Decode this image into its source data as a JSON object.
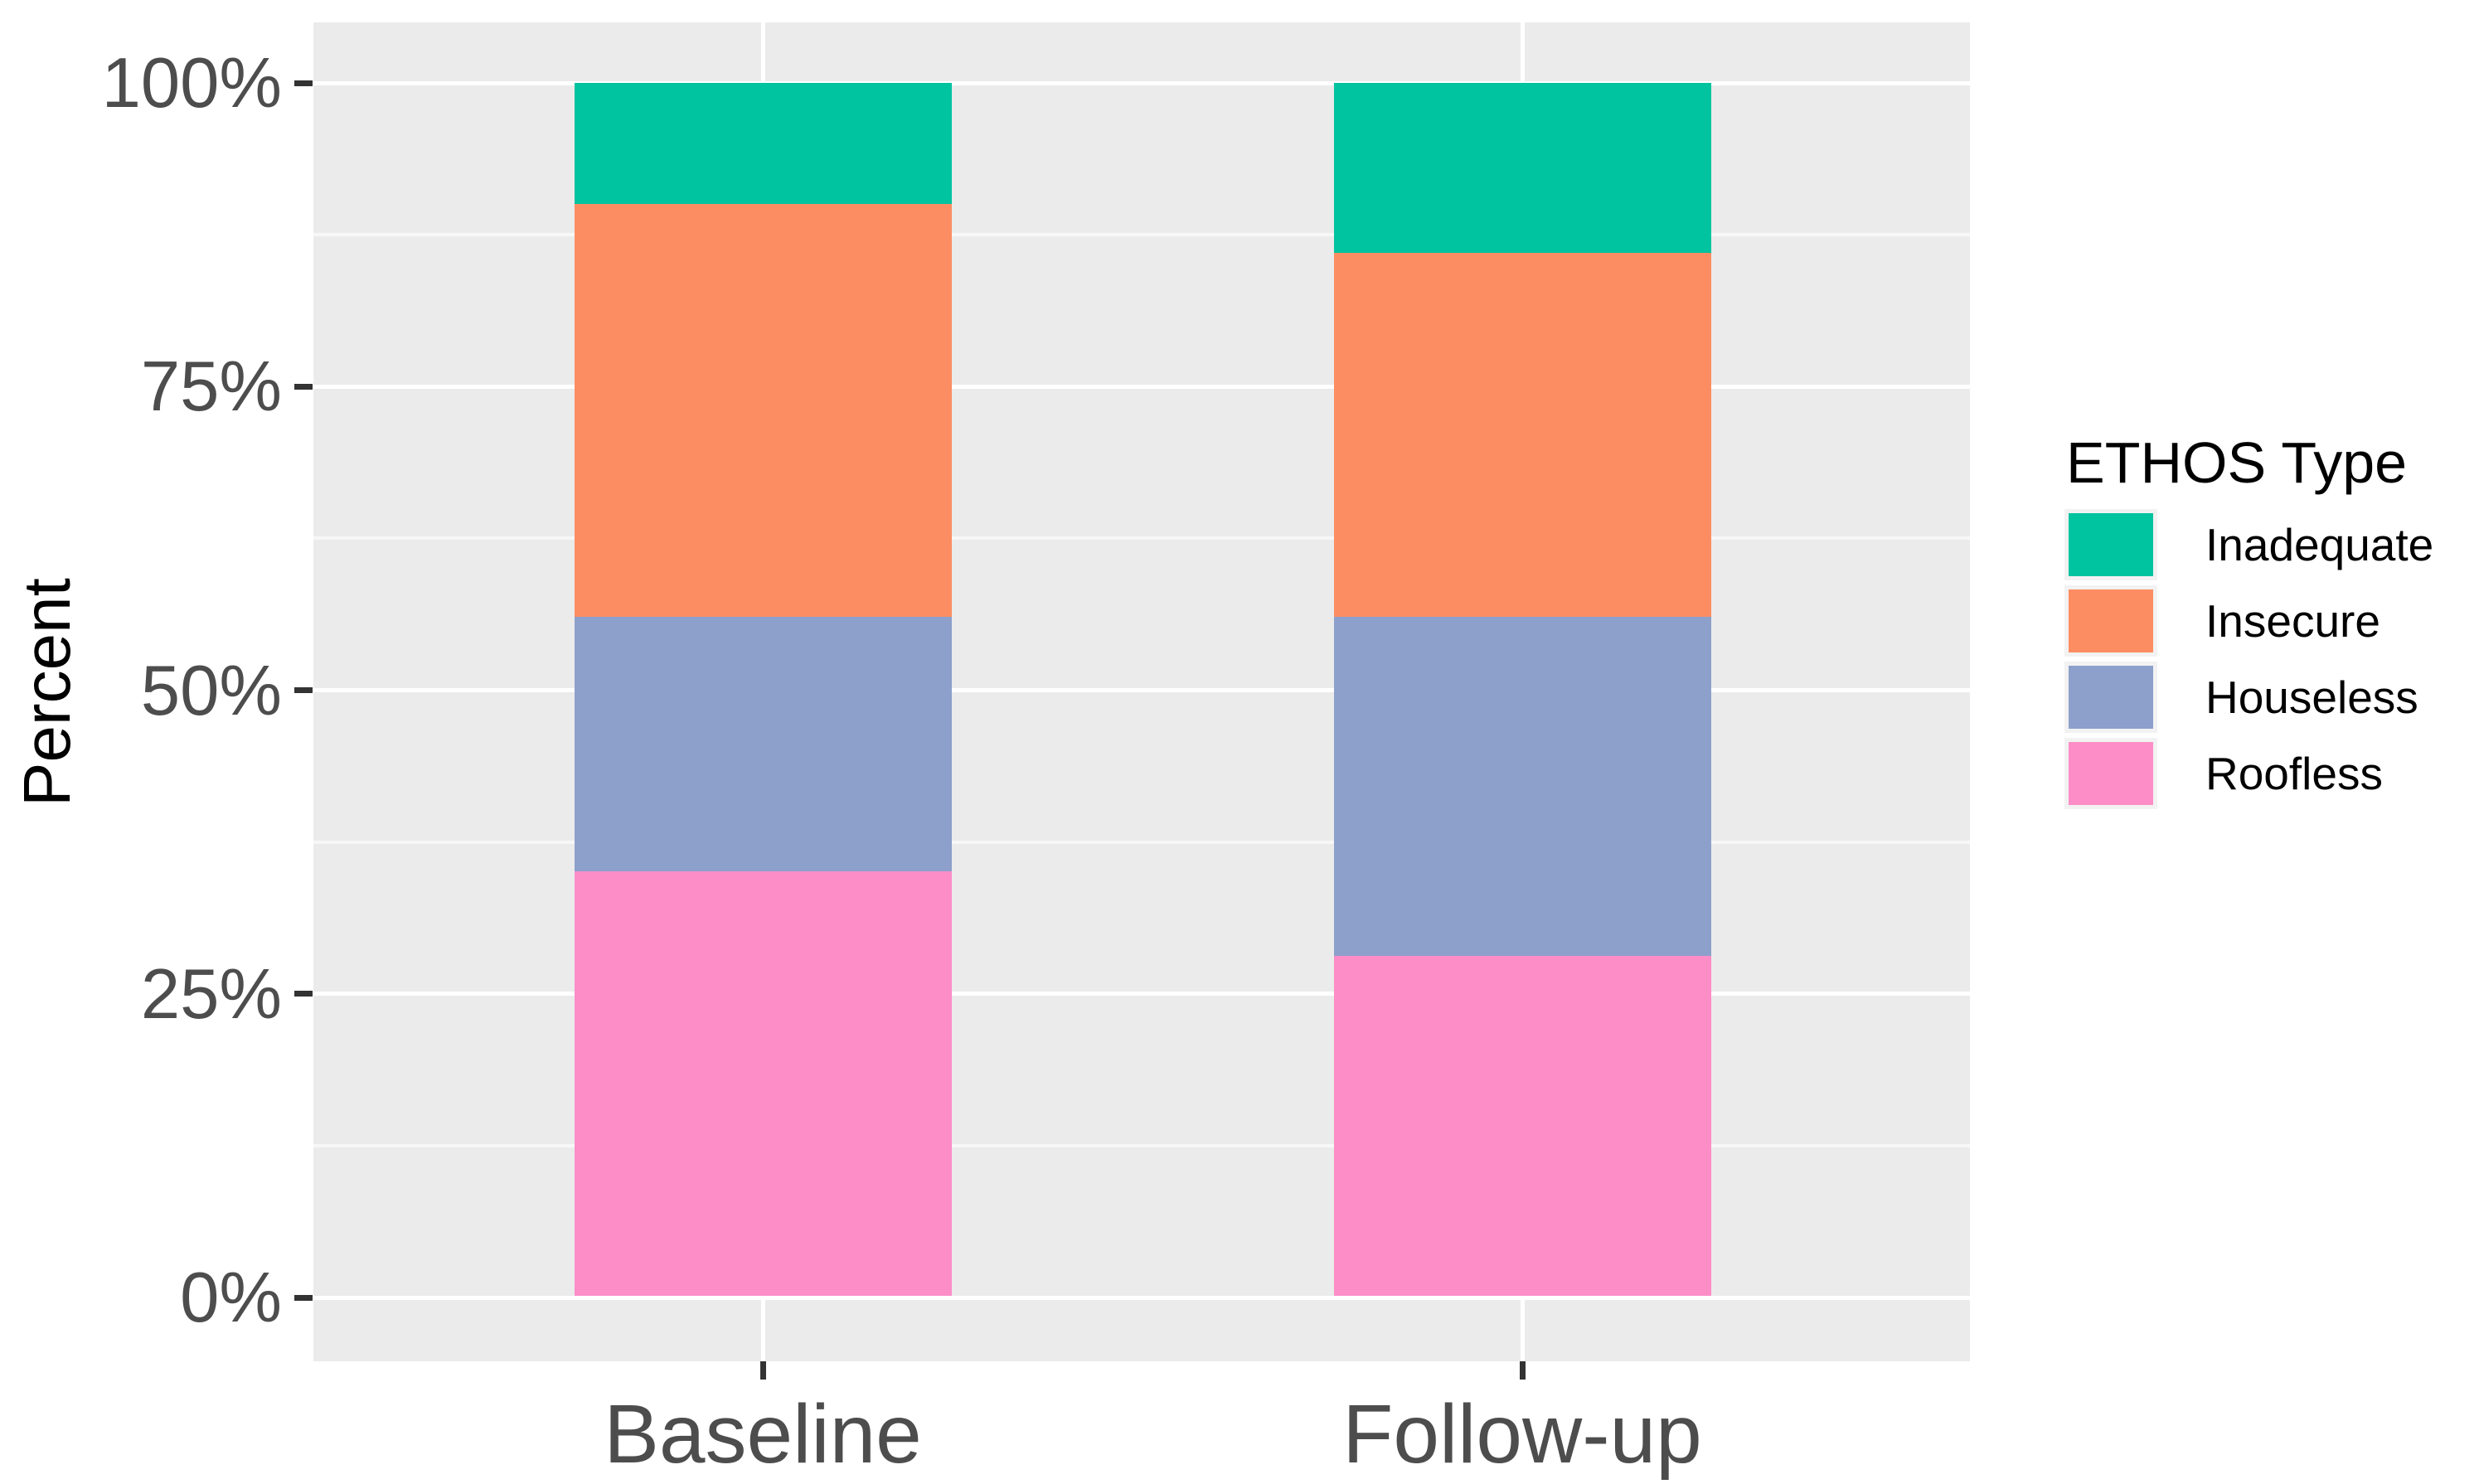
{
  "figure": {
    "background": "#FFFFFF"
  },
  "y_axis": {
    "title": "Percent",
    "tick_labels": [
      "100%",
      "75%",
      "50%",
      "25%",
      "0%"
    ],
    "tick_values": [
      100,
      75,
      50,
      25,
      0
    ]
  },
  "x_axis": {
    "tick_labels": [
      "Baseline",
      "Follow-up"
    ]
  },
  "legend": {
    "title": "ETHOS Type",
    "position": "right",
    "entries": [
      {
        "label": "Inadequate",
        "color": "#00C3A0"
      },
      {
        "label": "Insecure",
        "color": "#FC8D62"
      },
      {
        "label": "Houseless",
        "color": "#8DA0CB"
      },
      {
        "label": "Roofless",
        "color": "#FC8DC7"
      }
    ]
  },
  "chart_data": {
    "type": "bar",
    "stacked": true,
    "normalized": "percent",
    "title": "",
    "xlabel": "",
    "ylabel": "Percent",
    "ylim": [
      0,
      100
    ],
    "y_tick_labels": [
      "0%",
      "25%",
      "50%",
      "75%",
      "100%"
    ],
    "grid": true,
    "legend_position": "right",
    "legend_title": "ETHOS Type",
    "categories": [
      "Baseline",
      "Follow-up"
    ],
    "series": [
      {
        "name": "Roofless",
        "color": "#FC8DC7",
        "values": [
          35,
          28
        ]
      },
      {
        "name": "Houseless",
        "color": "#8DA0CB",
        "values": [
          21,
          28
        ]
      },
      {
        "name": "Insecure",
        "color": "#FC8D62",
        "values": [
          34,
          30
        ]
      },
      {
        "name": "Inadequate",
        "color": "#00C3A0",
        "values": [
          10,
          14
        ]
      }
    ],
    "colors": {
      "panel_background": "#EBEBEB",
      "grid_major": "#FFFFFF",
      "grid_minor": "#F7F7F7",
      "axis_text": "#4D4D4D",
      "axis_title_text": "#000000",
      "tick_marks": "#333333"
    }
  }
}
